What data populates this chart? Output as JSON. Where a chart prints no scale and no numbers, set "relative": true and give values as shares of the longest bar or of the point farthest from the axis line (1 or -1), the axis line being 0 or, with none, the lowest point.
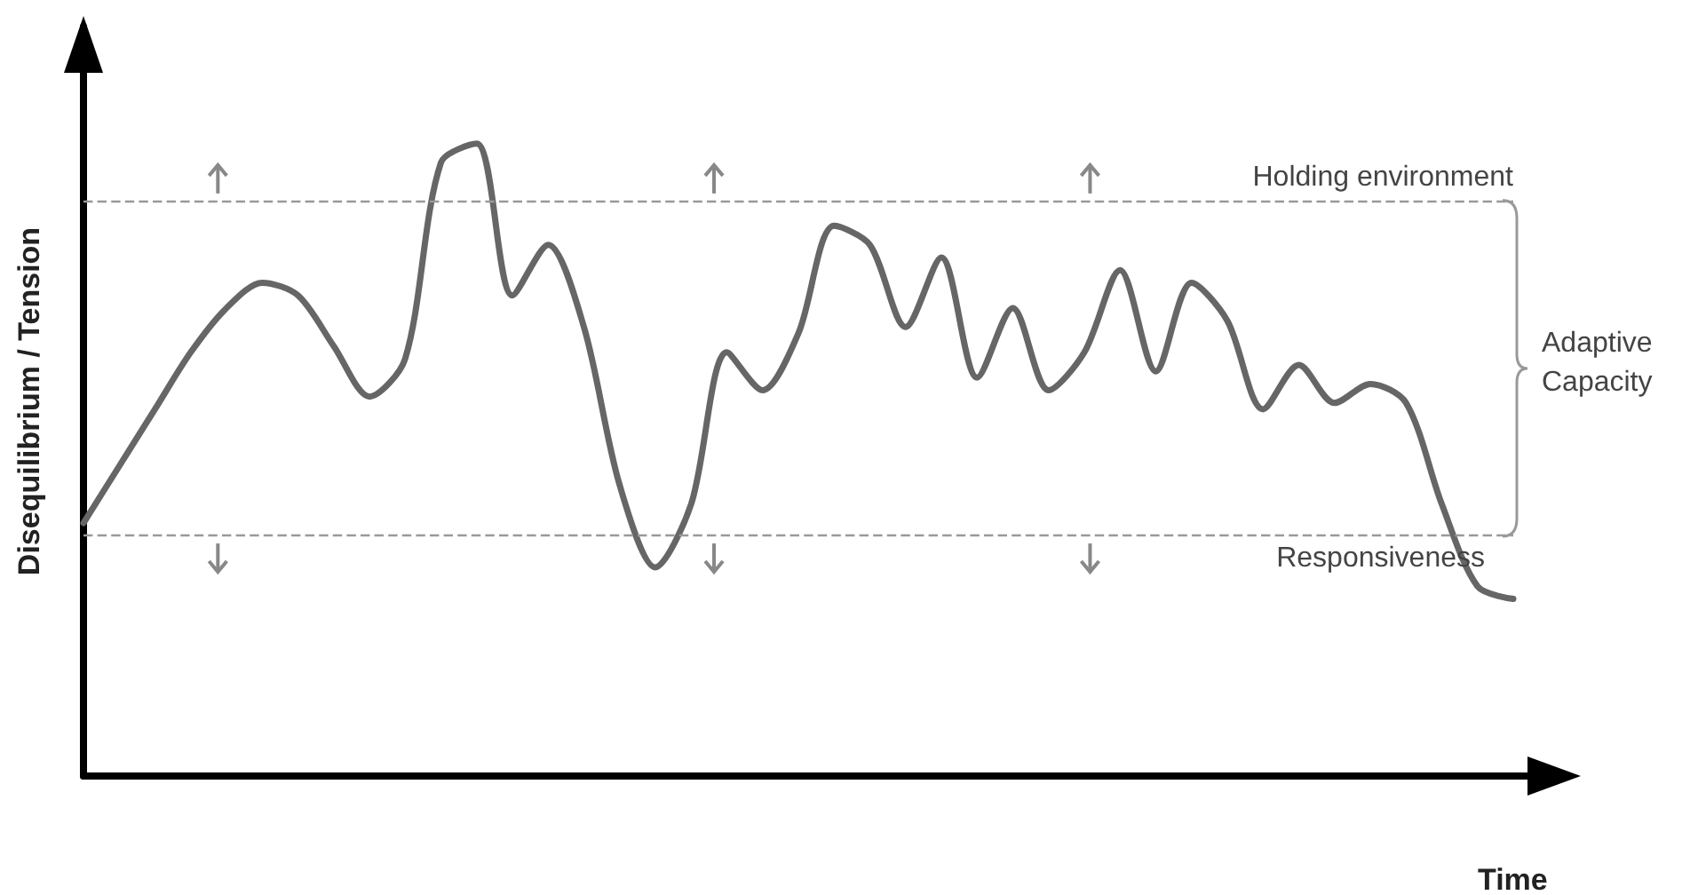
{
  "chart_data": {
    "type": "line",
    "relative": true,
    "xlabel": "Time",
    "ylabel": "Disequilibrium / Tension",
    "categories": [
      null,
      null,
      null,
      null,
      null,
      null,
      null,
      null,
      null,
      null,
      null,
      null,
      null,
      null,
      null,
      null,
      null,
      null,
      null,
      null,
      null,
      null,
      null,
      null,
      null,
      null,
      null,
      null,
      null,
      null,
      null,
      null,
      null,
      null,
      null,
      null,
      null,
      null,
      null,
      null,
      null
    ],
    "series": [
      {
        "color": "#666666",
        "values": [
          0.4,
          0.49,
          0.58,
          0.67,
          0.74,
          0.78,
          0.76,
          0.68,
          0.6,
          0.66,
          0.97,
          1,
          0.76,
          0.84,
          0.71,
          0.46,
          0.33,
          0.43,
          0.67,
          0.61,
          0.7,
          0.87,
          0.84,
          0.71,
          0.82,
          0.63,
          0.74,
          0.61,
          0.67,
          0.8,
          0.64,
          0.78,
          0.72,
          0.58,
          0.65,
          0.59,
          0.62,
          0.59,
          0.43,
          0.3,
          0.28
        ]
      }
    ],
    "ref_lines": [
      {
        "axis": "y",
        "value": 0.91,
        "label": "Holding environment",
        "color": "#999999",
        "line_style": "dashed"
      },
      {
        "axis": "y",
        "value": 0.379,
        "label": "Responsiveness",
        "color": "#999999",
        "line_style": "dashed"
      }
    ],
    "annotations": [
      "Adaptive Capacity"
    ],
    "marker": "none",
    "line_style": "solid",
    "grid": false
  }
}
